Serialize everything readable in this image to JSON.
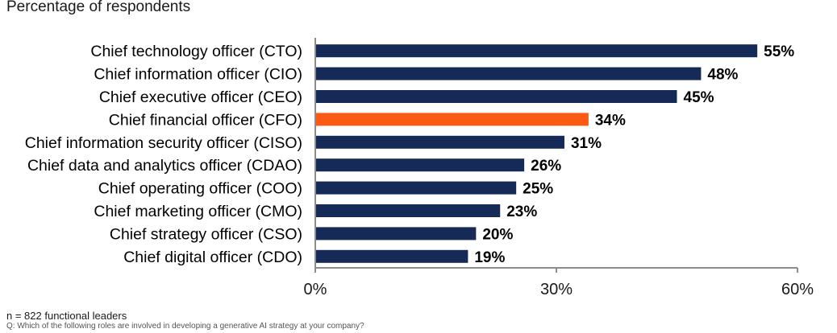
{
  "subtitle": "Percentage of respondents",
  "footer": {
    "n_label": "n = 822 functional leaders",
    "question": "Q: Which of the following roles are involved in developing a generative AI strategy at your company?"
  },
  "colors": {
    "bar": "#152a57",
    "highlight": "#fa5a14",
    "axis": "#8c8c8c",
    "text": "#000000"
  },
  "chart_data": {
    "type": "bar",
    "orientation": "horizontal",
    "title": "",
    "xlabel": "",
    "ylabel": "",
    "categories": [
      "Chief technology officer (CTO)",
      "Chief information officer (CIO)",
      "Chief executive officer (CEO)",
      "Chief financial officer (CFO)",
      "Chief information security officer (CISO)",
      "Chief data and analytics officer (CDAO)",
      "Chief operating officer (COO)",
      "Chief marketing officer (CMO)",
      "Chief strategy officer (CSO)",
      "Chief digital officer (CDO)"
    ],
    "values": [
      55,
      48,
      45,
      34,
      31,
      26,
      25,
      23,
      20,
      19
    ],
    "value_labels": [
      "55%",
      "48%",
      "45%",
      "34%",
      "31%",
      "26%",
      "25%",
      "23%",
      "20%",
      "19%"
    ],
    "highlight_category": "Chief financial officer (CFO)",
    "xlim": [
      0,
      60
    ],
    "ticks": [
      0,
      30,
      60
    ],
    "tick_labels": [
      "0%",
      "30%",
      "60%"
    ],
    "grid": false,
    "legend": "none"
  }
}
